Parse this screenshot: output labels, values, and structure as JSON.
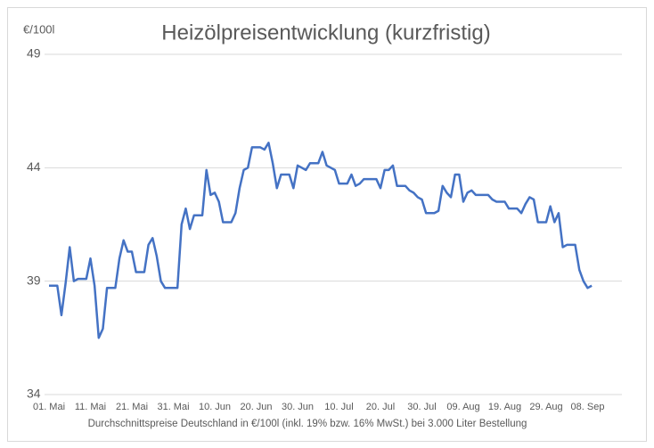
{
  "chart_data": {
    "type": "line",
    "title": "Heizölpreisentwicklung (kurzfristig)",
    "y_unit": "€/100l",
    "x_label": "Durchschnittspreise Deutschland in €/100l (inkl. 19% bzw. 16% MwSt.) bei 3.000 Liter Bestellung",
    "categories": [
      "01. Mai",
      null,
      null,
      null,
      null,
      null,
      null,
      null,
      null,
      null,
      "11. Mai",
      null,
      null,
      null,
      null,
      null,
      null,
      null,
      null,
      null,
      "21. Mai",
      null,
      null,
      null,
      null,
      null,
      null,
      null,
      null,
      null,
      "31. Mai",
      null,
      null,
      null,
      null,
      null,
      null,
      null,
      null,
      null,
      "10. Jun",
      null,
      null,
      null,
      null,
      null,
      null,
      null,
      null,
      null,
      "20. Jun",
      null,
      null,
      null,
      null,
      null,
      null,
      null,
      null,
      null,
      "30. Jun",
      null,
      null,
      null,
      null,
      null,
      null,
      null,
      null,
      null,
      "10. Jul",
      null,
      null,
      null,
      null,
      null,
      null,
      null,
      null,
      null,
      "20. Jul",
      null,
      null,
      null,
      null,
      null,
      null,
      null,
      null,
      null,
      "30. Jul",
      null,
      null,
      null,
      null,
      null,
      null,
      null,
      null,
      null,
      "09. Aug",
      null,
      null,
      null,
      null,
      null,
      null,
      null,
      null,
      null,
      "19. Aug",
      null,
      null,
      null,
      null,
      null,
      null,
      null,
      null,
      null,
      "29. Aug",
      null,
      null,
      null,
      null,
      null,
      null,
      null,
      null,
      null,
      "08. Sep",
      null
    ],
    "series": [
      {
        "color": "#4472c4",
        "values": [
          38.8,
          38.8,
          38.8,
          37.5,
          38.9,
          40.5,
          39.0,
          39.1,
          39.1,
          39.1,
          40.0,
          38.8,
          36.5,
          36.9,
          38.7,
          38.7,
          38.7,
          40.0,
          40.8,
          40.3,
          40.3,
          39.4,
          39.4,
          39.4,
          40.6,
          40.9,
          40.1,
          39.0,
          38.7,
          38.7,
          38.7,
          38.7,
          41.5,
          42.2,
          41.3,
          41.9,
          41.9,
          41.9,
          43.9,
          42.8,
          42.9,
          42.5,
          41.6,
          41.6,
          41.6,
          42.0,
          43.1,
          43.9,
          44.0,
          44.9,
          44.9,
          44.9,
          44.8,
          45.1,
          44.2,
          43.1,
          43.7,
          43.7,
          43.7,
          43.1,
          44.1,
          44.0,
          43.9,
          44.2,
          44.2,
          44.2,
          44.7,
          44.1,
          44.0,
          43.9,
          43.3,
          43.3,
          43.3,
          43.7,
          43.2,
          43.3,
          43.5,
          43.5,
          43.5,
          43.5,
          43.1,
          43.9,
          43.9,
          44.1,
          43.2,
          43.2,
          43.2,
          43.0,
          42.9,
          42.7,
          42.6,
          42.0,
          42.0,
          42.0,
          42.1,
          43.2,
          42.9,
          42.7,
          43.7,
          43.7,
          42.5,
          42.9,
          43.0,
          42.8,
          42.8,
          42.8,
          42.8,
          42.6,
          42.5,
          42.5,
          42.5,
          42.2,
          42.2,
          42.2,
          42.0,
          42.4,
          42.7,
          42.6,
          41.6,
          41.6,
          41.6,
          42.3,
          41.6,
          42.0,
          40.5,
          40.6,
          40.6,
          40.6,
          39.5,
          39.0,
          38.7,
          38.8
        ]
      }
    ],
    "ylim": [
      34,
      49
    ],
    "yticks": [
      34,
      39,
      44,
      49
    ],
    "grid": true
  }
}
